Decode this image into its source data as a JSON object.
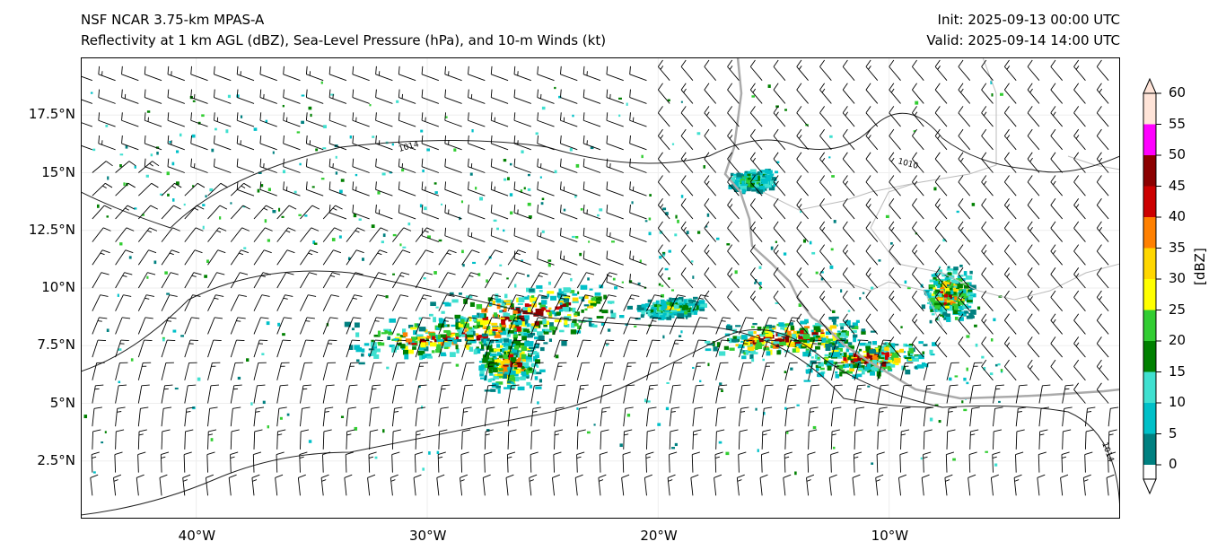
{
  "header": {
    "title": "NSF NCAR 3.75-km MPAS-A",
    "subtitle": "Reflectivity at 1 km AGL (dBZ), Sea-Level Pressure (hPa), and 10-m Winds (kt)",
    "init": "Init: 2025-09-13 00:00 UTC",
    "valid": "Valid: 2025-09-14 14:00 UTC"
  },
  "axes": {
    "lon_ticks": [
      "40°W",
      "30°W",
      "20°W",
      "10°W"
    ],
    "lon_values": [
      -40,
      -30,
      -20,
      -10
    ],
    "lat_ticks": [
      "17.5°N",
      "15°N",
      "12.5°N",
      "10°N",
      "7.5°N",
      "5°N",
      "2.5°N"
    ],
    "lat_values": [
      17.5,
      15,
      12.5,
      10,
      7.5,
      5,
      2.5
    ],
    "lon_range": [
      -45,
      0
    ],
    "lat_range": [
      0,
      20
    ]
  },
  "contours": {
    "labels": [
      "1014",
      "1010",
      "1014"
    ]
  },
  "colorbar": {
    "unit": "[dBZ]",
    "ticks": [
      "60",
      "55",
      "50",
      "45",
      "40",
      "35",
      "30",
      "25",
      "20",
      "15",
      "10",
      "5",
      "0"
    ],
    "levels": [
      0,
      5,
      10,
      15,
      20,
      25,
      30,
      35,
      40,
      45,
      50,
      55,
      60
    ],
    "colors": [
      "#008080",
      "#00c0c8",
      "#40e0d0",
      "#008000",
      "#32cd32",
      "#ffff00",
      "#ffd700",
      "#ff8000",
      "#cc0000",
      "#8b0000",
      "#ff00ff",
      "#ffe4d8"
    ]
  }
}
